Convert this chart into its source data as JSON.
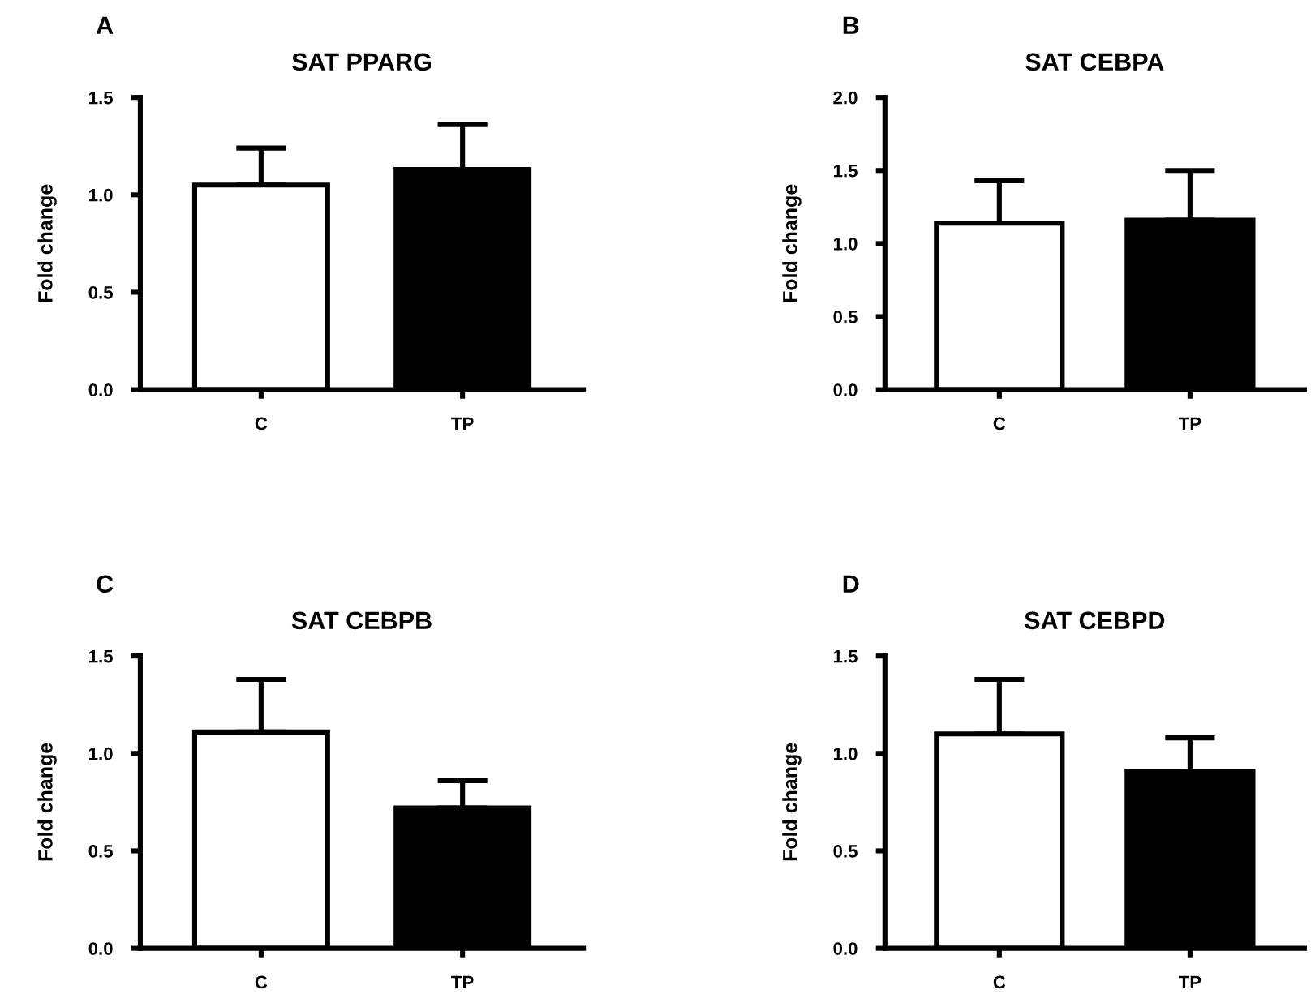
{
  "chart_data": [
    {
      "type": "bar",
      "title": "SAT PPARG",
      "ylabel": "Fold change",
      "annotations": [
        "A"
      ],
      "categories": [
        "C",
        "TP"
      ],
      "values": [
        1.05,
        1.13
      ],
      "colors": [
        "#ffffff",
        "#000000"
      ],
      "errors": [
        [
          1.05,
          1.24
        ],
        [
          1.13,
          1.36
        ]
      ],
      "ylim": [
        0,
        1.5
      ],
      "yticks": [
        {
          "value": 0,
          "label": "0.0"
        },
        {
          "value": 0.5,
          "label": "0.5"
        },
        {
          "value": 1,
          "label": "1.0"
        },
        {
          "value": 1.5,
          "label": "1.5"
        }
      ],
      "grid": false,
      "legend": false
    },
    {
      "type": "bar",
      "title": "SAT CEBPA",
      "ylabel": "Fold change",
      "annotations": [
        "B"
      ],
      "categories": [
        "C",
        "TP"
      ],
      "values": [
        1.14,
        1.16
      ],
      "colors": [
        "#ffffff",
        "#000000"
      ],
      "errors": [
        [
          1.14,
          1.43
        ],
        [
          1.16,
          1.5
        ]
      ],
      "ylim": [
        0,
        2
      ],
      "yticks": [
        {
          "value": 0,
          "label": "0.0"
        },
        {
          "value": 0.5,
          "label": "0.5"
        },
        {
          "value": 1,
          "label": "1.0"
        },
        {
          "value": 1.5,
          "label": "1.5"
        },
        {
          "value": 2,
          "label": "2.0"
        }
      ],
      "grid": false,
      "legend": false
    },
    {
      "type": "bar",
      "title": "SAT CEBPB",
      "ylabel": "Fold change",
      "annotations": [
        "C"
      ],
      "categories": [
        "C",
        "TP"
      ],
      "values": [
        1.11,
        0.72
      ],
      "colors": [
        "#ffffff",
        "#000000"
      ],
      "errors": [
        [
          1.11,
          1.38
        ],
        [
          0.72,
          0.86
        ]
      ],
      "ylim": [
        0,
        1.5
      ],
      "yticks": [
        {
          "value": 0,
          "label": "0.0"
        },
        {
          "value": 0.5,
          "label": "0.5"
        },
        {
          "value": 1,
          "label": "1.0"
        },
        {
          "value": 1.5,
          "label": "1.5"
        }
      ],
      "grid": false,
      "legend": false
    },
    {
      "type": "bar",
      "title": "SAT CEBPD",
      "ylabel": "Fold change",
      "annotations": [
        "D"
      ],
      "categories": [
        "C",
        "TP"
      ],
      "values": [
        1.1,
        0.91
      ],
      "colors": [
        "#ffffff",
        "#000000"
      ],
      "errors": [
        [
          1.1,
          1.38
        ],
        [
          0.91,
          1.08
        ]
      ],
      "ylim": [
        0,
        1.5
      ],
      "yticks": [
        {
          "value": 0,
          "label": "0.0"
        },
        {
          "value": 0.5,
          "label": "0.5"
        },
        {
          "value": 1,
          "label": "1.0"
        },
        {
          "value": 1.5,
          "label": "1.5"
        }
      ],
      "grid": false,
      "legend": false
    }
  ]
}
